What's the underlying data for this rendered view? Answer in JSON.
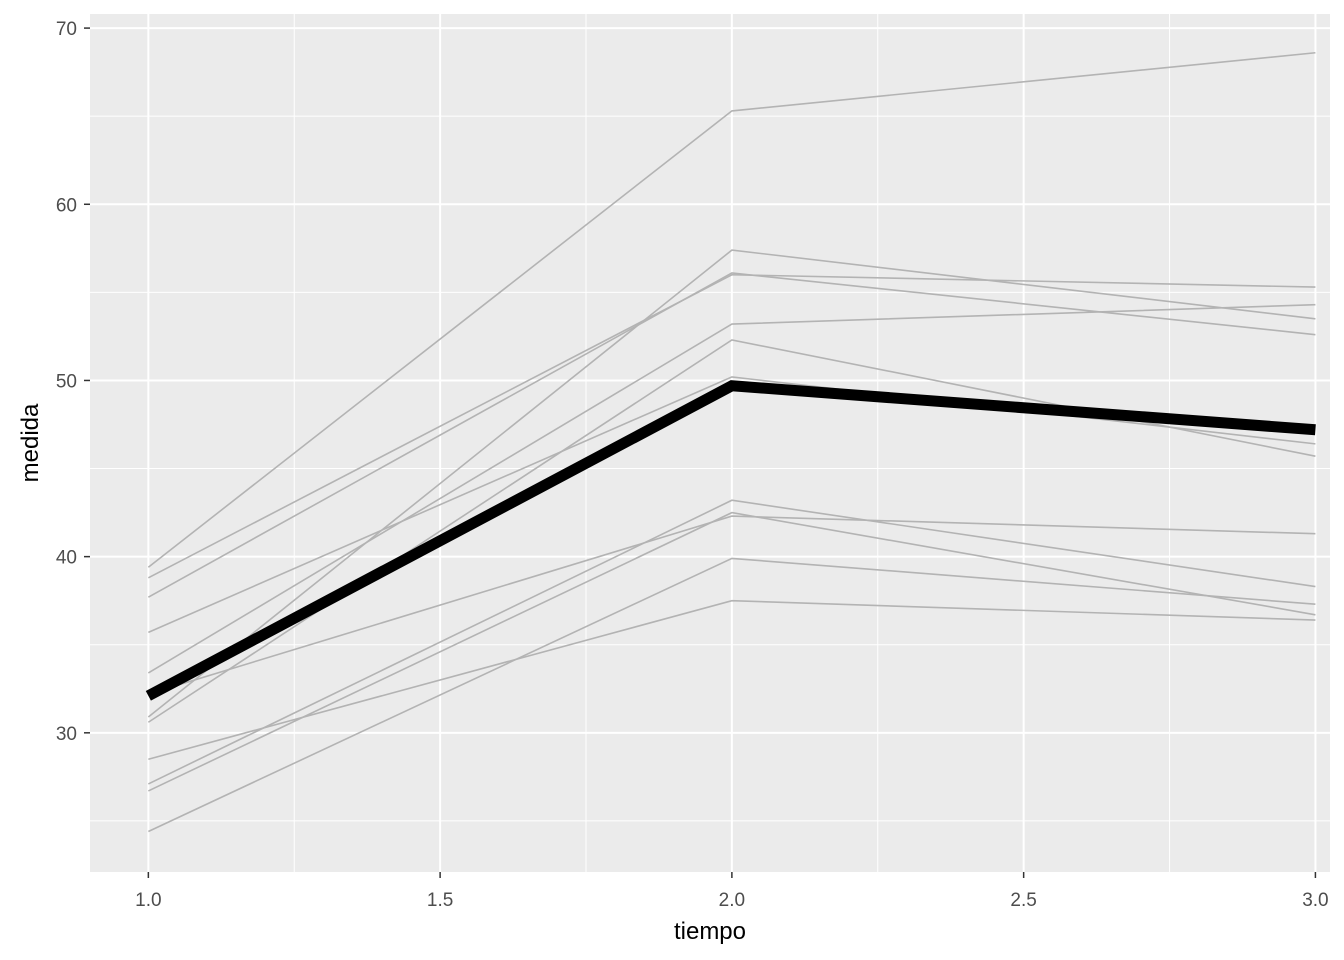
{
  "chart_data": {
    "type": "line",
    "xlabel": "tiempo",
    "ylabel": "medida",
    "xlim": [
      0.9,
      3.025
    ],
    "ylim": [
      22.1,
      70.8
    ],
    "x_ticks": [
      1.0,
      1.5,
      2.0,
      2.5,
      3.0
    ],
    "x_tick_labels": [
      "1.0",
      "1.5",
      "2.0",
      "2.5",
      "3.0"
    ],
    "y_ticks": [
      30,
      40,
      50,
      60,
      70
    ],
    "y_tick_labels": [
      "30",
      "40",
      "50",
      "60",
      "70"
    ],
    "grid": true,
    "x": [
      1,
      2,
      3
    ],
    "series": [
      {
        "values": [
          39.4,
          65.3,
          68.6
        ]
      },
      {
        "values": [
          38.8,
          56.0,
          55.3
        ]
      },
      {
        "values": [
          37.7,
          56.1,
          52.6
        ]
      },
      {
        "values": [
          35.7,
          50.2,
          46.4
        ]
      },
      {
        "values": [
          33.4,
          53.2,
          54.3
        ]
      },
      {
        "values": [
          30.9,
          57.4,
          53.5
        ]
      },
      {
        "values": [
          30.6,
          52.3,
          45.7
        ]
      },
      {
        "values": [
          28.5,
          37.5,
          36.4
        ]
      },
      {
        "values": [
          27.1,
          43.2,
          38.3
        ]
      },
      {
        "values": [
          26.7,
          42.5,
          36.7
        ]
      },
      {
        "values": [
          24.4,
          39.9,
          37.3
        ]
      },
      {
        "values": [
          32.2,
          42.3,
          41.3
        ]
      }
    ],
    "mean_series": {
      "values": [
        32.1,
        49.7,
        47.2
      ]
    },
    "colors": {
      "panel": "#ebebeb",
      "grid": "#ffffff",
      "series": "#b3b3b3",
      "mean": "#000000",
      "tick_label": "#4d4d4d",
      "tick_mark": "#333333"
    }
  }
}
